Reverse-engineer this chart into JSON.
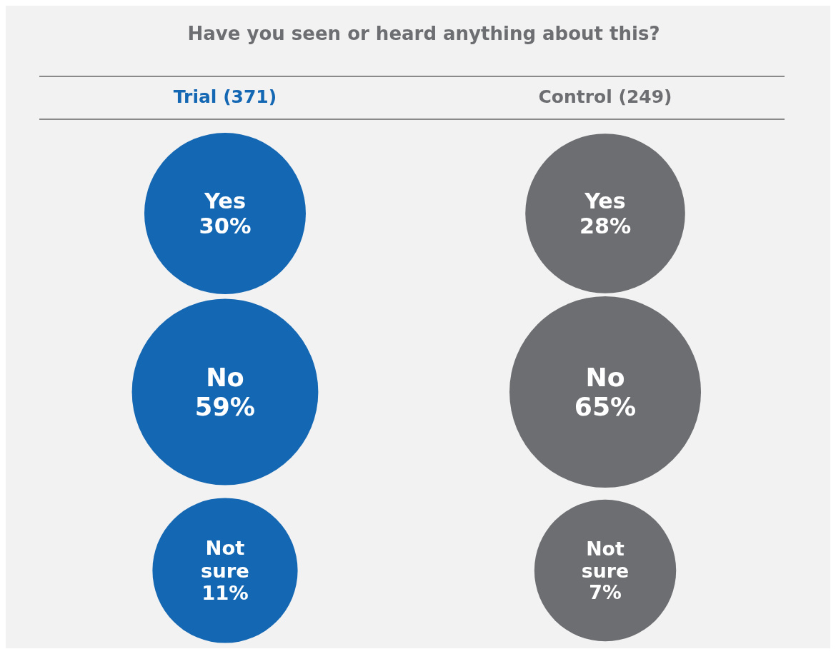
{
  "chart_data": {
    "type": "other",
    "title": "Have you seen or heard anything about this?",
    "categories": [
      "Yes",
      "No",
      "Not sure"
    ],
    "series": [
      {
        "name": "Trial (371)",
        "color": "#1467b3",
        "values": [
          30,
          59,
          11
        ],
        "value_labels": [
          "30%",
          "59%",
          "11%"
        ]
      },
      {
        "name": "Control (249)",
        "color": "#6d6e71",
        "values": [
          28,
          65,
          7
        ],
        "value_labels": [
          "28%",
          "65%",
          "7%"
        ]
      }
    ]
  }
}
